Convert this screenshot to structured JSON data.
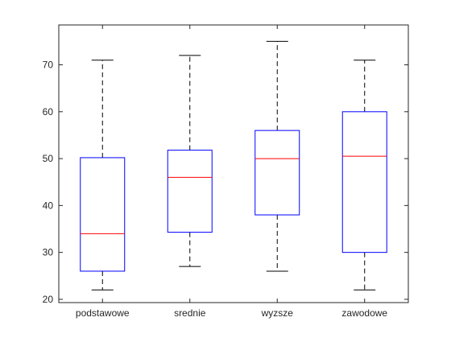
{
  "chart_data": {
    "type": "box",
    "title": "",
    "xlabel": "",
    "ylabel": "",
    "categories": [
      "podstawowe",
      "srednie",
      "wyzsze",
      "zawodowe"
    ],
    "boxes": [
      {
        "category": "podstawowe",
        "min": 22,
        "q1": 26,
        "median": 34,
        "q3": 50.2,
        "max": 71
      },
      {
        "category": "srednie",
        "min": 27,
        "q1": 34.3,
        "median": 46,
        "q3": 51.8,
        "max": 72
      },
      {
        "category": "wyzsze",
        "min": 26,
        "q1": 38,
        "median": 50,
        "q3": 56,
        "max": 75
      },
      {
        "category": "zawodowe",
        "min": 22,
        "q1": 30,
        "median": 50.5,
        "q3": 60,
        "max": 71
      }
    ],
    "ylim": [
      19.3,
      78.5
    ],
    "yticks": [
      20,
      30,
      40,
      50,
      60,
      70
    ],
    "grid": false,
    "colors": {
      "box": "#0000ff",
      "median": "#ff0000",
      "whisker": "#000000",
      "axes": "#262626"
    }
  }
}
